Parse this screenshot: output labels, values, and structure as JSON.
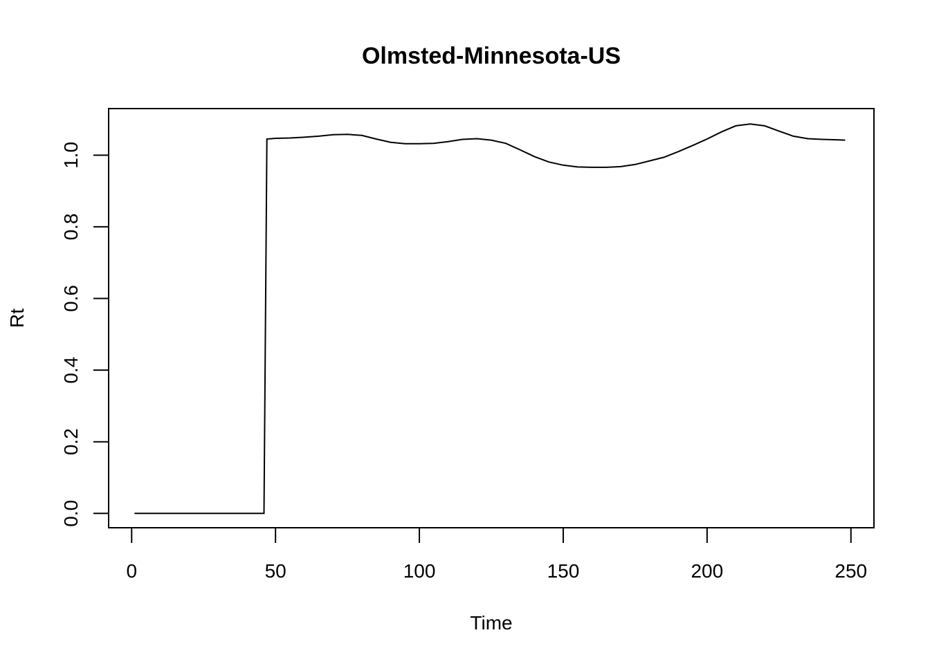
{
  "chart_data": {
    "type": "line",
    "title": "Olmsted-Minnesota-US",
    "xlabel": "Time",
    "ylabel": "Rt",
    "xlim": [
      -8,
      258
    ],
    "ylim": [
      -0.04,
      1.13
    ],
    "xticks": [
      "0",
      "50",
      "100",
      "150",
      "200",
      "250"
    ],
    "yticks": [
      "0.0",
      "0.2",
      "0.4",
      "0.6",
      "0.8",
      "1.0"
    ],
    "grid": false,
    "legend": "none",
    "line_color": "#000000",
    "series": [
      {
        "x": [
          1,
          10,
          20,
          30,
          40,
          46,
          47,
          50,
          55,
          60,
          65,
          70,
          75,
          80,
          85,
          90,
          95,
          100,
          105,
          110,
          115,
          120,
          125,
          130,
          135,
          140,
          145,
          150,
          155,
          160,
          165,
          170,
          175,
          180,
          185,
          190,
          195,
          200,
          205,
          210,
          215,
          220,
          225,
          230,
          235,
          240,
          245,
          248
        ],
        "values": [
          0.0,
          0.0,
          0.0,
          0.0,
          0.0,
          0.0,
          1.045,
          1.047,
          1.048,
          1.05,
          1.053,
          1.057,
          1.058,
          1.055,
          1.045,
          1.036,
          1.032,
          1.032,
          1.033,
          1.038,
          1.044,
          1.046,
          1.042,
          1.033,
          1.015,
          0.996,
          0.981,
          0.972,
          0.967,
          0.966,
          0.966,
          0.968,
          0.974,
          0.984,
          0.994,
          1.01,
          1.027,
          1.045,
          1.065,
          1.082,
          1.087,
          1.082,
          1.067,
          1.053,
          1.046,
          1.044,
          1.043,
          1.042
        ]
      }
    ]
  }
}
